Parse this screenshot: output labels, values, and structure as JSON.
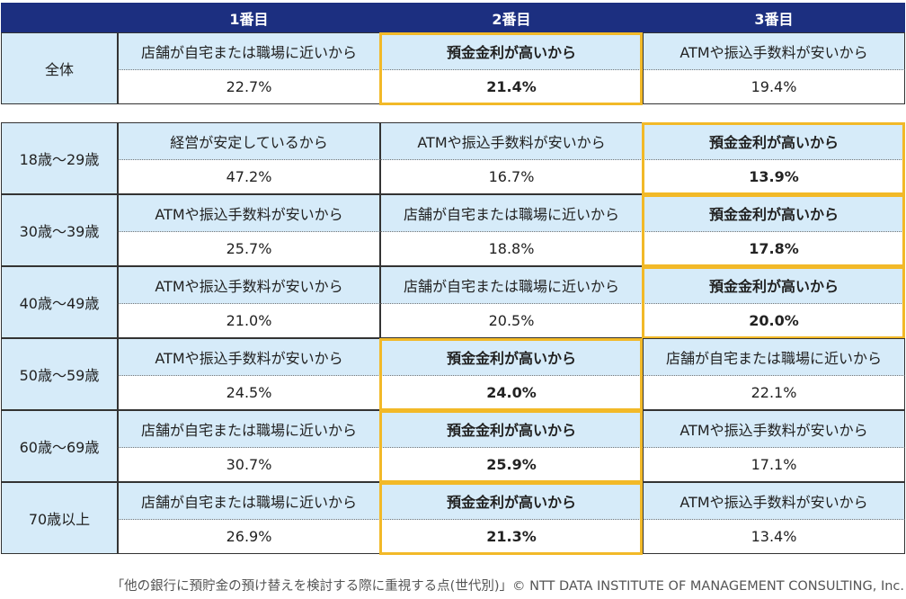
{
  "chart_data": {
    "type": "table",
    "columns": [
      "1番目",
      "2番目",
      "3番目"
    ],
    "highlight_reason": "預金金利が高いから",
    "rows": [
      {
        "label": "全体",
        "cells": [
          {
            "reason": "店舗が自宅または職場に近いから",
            "value": "22.7%"
          },
          {
            "reason": "預金金利が高いから",
            "value": "21.4%"
          },
          {
            "reason": "ATMや振込手数料が安いから",
            "value": "19.4%"
          }
        ]
      },
      {
        "label": "18歳～29歳",
        "cells": [
          {
            "reason": "経営が安定しているから",
            "value": "47.2%"
          },
          {
            "reason": "ATMや振込手数料が安いから",
            "value": "16.7%"
          },
          {
            "reason": "預金金利が高いから",
            "value": "13.9%"
          }
        ]
      },
      {
        "label": "30歳～39歳",
        "cells": [
          {
            "reason": "ATMや振込手数料が安いから",
            "value": "25.7%"
          },
          {
            "reason": "店舗が自宅または職場に近いから",
            "value": "18.8%"
          },
          {
            "reason": "預金金利が高いから",
            "value": "17.8%"
          }
        ]
      },
      {
        "label": "40歳～49歳",
        "cells": [
          {
            "reason": "ATMや振込手数料が安いから",
            "value": "21.0%"
          },
          {
            "reason": "店舗が自宅または職場に近いから",
            "value": "20.5%"
          },
          {
            "reason": "預金金利が高いから",
            "value": "20.0%"
          }
        ]
      },
      {
        "label": "50歳～59歳",
        "cells": [
          {
            "reason": "ATMや振込手数料が安いから",
            "value": "24.5%"
          },
          {
            "reason": "預金金利が高いから",
            "value": "24.0%"
          },
          {
            "reason": "店舗が自宅または職場に近いから",
            "value": "22.1%"
          }
        ]
      },
      {
        "label": "60歳～69歳",
        "cells": [
          {
            "reason": "店舗が自宅または職場に近いから",
            "value": "30.7%"
          },
          {
            "reason": "預金金利が高いから",
            "value": "25.9%"
          },
          {
            "reason": "ATMや振込手数料が安いから",
            "value": "17.1%"
          }
        ]
      },
      {
        "label": "70歳以上",
        "cells": [
          {
            "reason": "店舗が自宅または職場に近いから",
            "value": "26.9%"
          },
          {
            "reason": "預金金利が高いから",
            "value": "21.3%"
          },
          {
            "reason": "ATMや振込手数料が安いから",
            "value": "13.4%"
          }
        ]
      }
    ],
    "source": "「他の銀行に預貯金の預け替えを検討する際に重視する点(世代別)」© NTT DATA INSTITUTE OF MANAGEMENT CONSULTING, Inc.",
    "colors": {
      "header": "#1c2f80",
      "label_fill": "#d6ebf9",
      "highlight": "#f2b928"
    }
  }
}
